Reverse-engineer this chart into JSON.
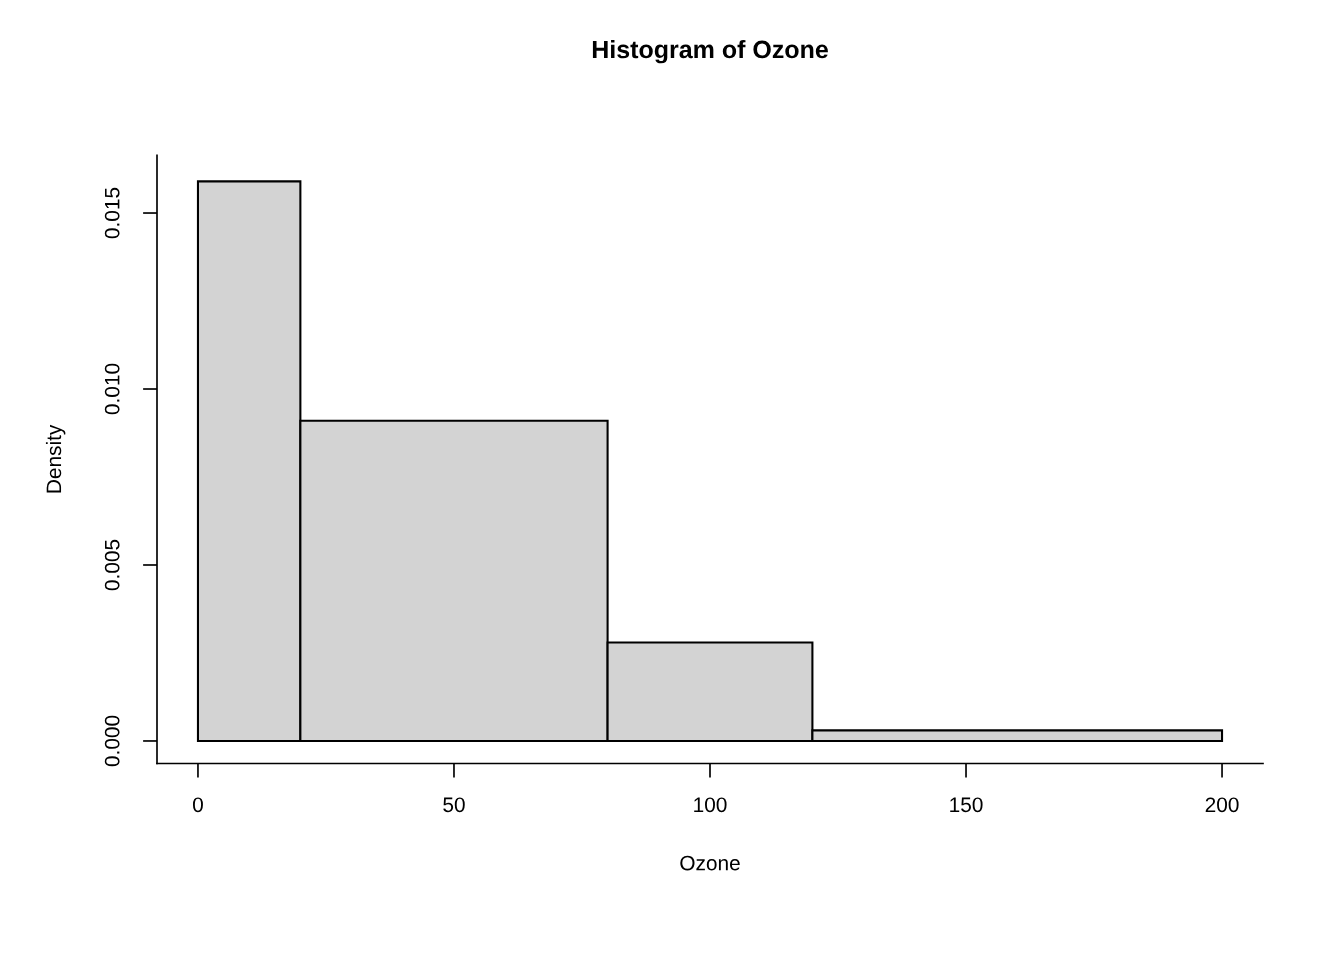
{
  "chart_data": {
    "type": "histogram",
    "title": "Histogram of Ozone",
    "xlabel": "Ozone",
    "ylabel": "Density",
    "bins": [
      0,
      20,
      80,
      120,
      200
    ],
    "values": [
      0.0159,
      0.0091,
      0.0028,
      0.0003
    ],
    "color": "#d3d3d3",
    "xlim": [
      -8,
      208
    ],
    "xticks": [
      0,
      50,
      100,
      150,
      200
    ],
    "ylim": [
      -0.00064,
      0.01664
    ],
    "yticks": [
      {
        "value": 0,
        "label": "0.000"
      },
      {
        "value": 0.005,
        "label": "0.005"
      },
      {
        "value": 0.01,
        "label": "0.010"
      },
      {
        "value": 0.015,
        "label": "0.015"
      }
    ],
    "grid": false
  }
}
